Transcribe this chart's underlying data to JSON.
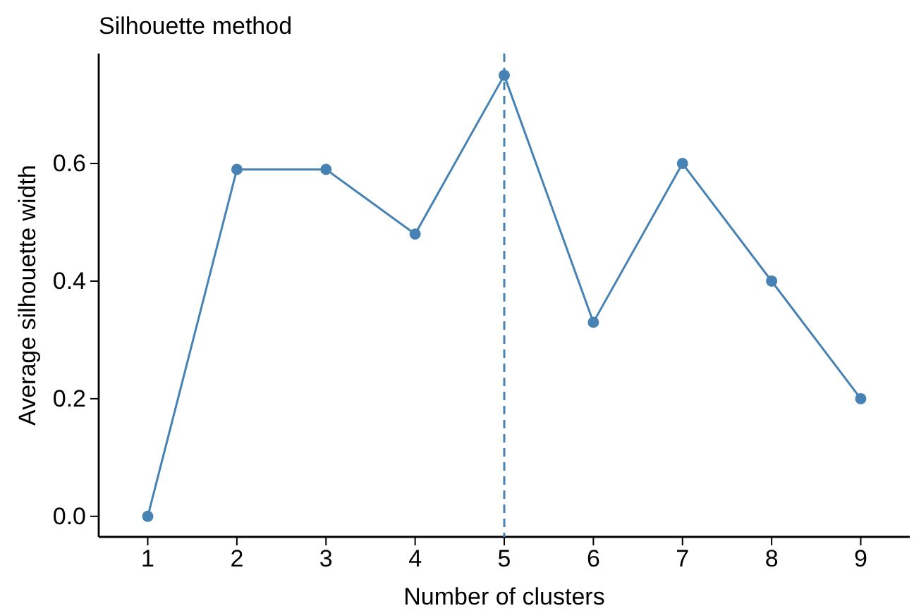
{
  "chart_data": {
    "type": "line",
    "title": "Silhouette method",
    "xlabel": "Number of clusters",
    "ylabel": "Average silhouette width",
    "categories": [
      "1",
      "2",
      "3",
      "4",
      "5",
      "6",
      "7",
      "8",
      "9"
    ],
    "series": [
      {
        "color": "#4682b4",
        "values": [
          0,
          0.59,
          0.59,
          0.48,
          0.75,
          0.33,
          0.6,
          0.4,
          0.2
        ]
      }
    ],
    "ylim": [
      -0.035,
      0.787
    ],
    "yticks": [
      {
        "value": 0,
        "label": "0.0"
      },
      {
        "value": 0.2,
        "label": "0.2"
      },
      {
        "value": 0.4,
        "label": "0.4"
      },
      {
        "value": 0.6,
        "label": "0.6"
      }
    ],
    "ref_lines": [
      {
        "axis": "x",
        "value": "5",
        "color": "#4682b4",
        "line_style": "dashed"
      }
    ],
    "grid": false,
    "marker": "circle",
    "line_style": "solid"
  }
}
